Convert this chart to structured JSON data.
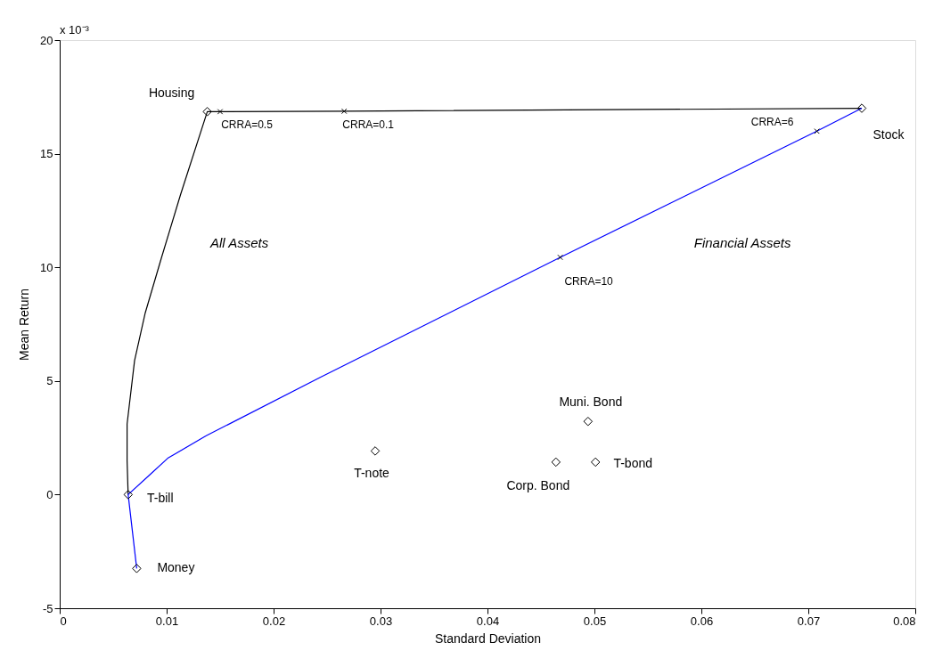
{
  "chart_data": {
    "type": "scatter",
    "xlabel": "Standard Deviation",
    "ylabel": "Mean Return",
    "xlim": [
      0,
      0.08
    ],
    "xticks": [
      0,
      0.01,
      0.02,
      0.03,
      0.04,
      0.05,
      0.06,
      0.07,
      0.08
    ],
    "ylim": [
      -5,
      20
    ],
    "yticks": [
      -5,
      0,
      5,
      10,
      15,
      20
    ],
    "grid": false,
    "legend": false,
    "series": [
      {
        "type": "line",
        "color": "#000000",
        "marker": "none",
        "line_style": "solid",
        "x": [
          0.0064,
          0.0063,
          0.0063,
          0.007,
          0.008,
          0.0095,
          0.0113,
          0.0138,
          0.015,
          0.0266,
          0.075
        ],
        "values": [
          0,
          1.5,
          3.1,
          5.9,
          8.0,
          10.4,
          13.2,
          16.85,
          16.85,
          16.87,
          17.0
        ]
      },
      {
        "type": "line",
        "color": "#0000ff",
        "marker": "none",
        "line_style": "solid",
        "x": [
          0.0072,
          0.0064,
          0.0083,
          0.0101,
          0.0137,
          0.0244,
          0.0468,
          0.0708,
          0.075
        ],
        "values": [
          -3.25,
          0,
          0.82,
          1.6,
          2.59,
          5.17,
          10.44,
          15.99,
          17.0
        ]
      },
      {
        "type": "scatter",
        "color": "#000000",
        "marker": "diamond",
        "x": [
          0.0138,
          0.075,
          0.0064,
          0.0072,
          0.0295,
          0.0464,
          0.0501,
          0.0494
        ],
        "values": [
          16.85,
          17.0,
          0,
          -3.25,
          1.92,
          1.43,
          1.43,
          3.22
        ]
      },
      {
        "type": "scatter",
        "color": "#000000",
        "marker": "cross",
        "x": [
          0.015,
          0.0266,
          0.0708,
          0.0468
        ],
        "values": [
          16.85,
          16.87,
          15.99,
          10.44
        ]
      }
    ],
    "annotations": [
      {
        "text": "Housing",
        "x": 0.0138,
        "y": 16.85
      },
      {
        "text": "Stock",
        "x": 0.075,
        "y": 17.0
      },
      {
        "text": "T-bill",
        "x": 0.0064,
        "y": 0
      },
      {
        "text": "Money",
        "x": 0.0072,
        "y": -3.25
      },
      {
        "text": "T-note",
        "x": 0.0295,
        "y": 1.92
      },
      {
        "text": "Corp. Bond",
        "x": 0.0464,
        "y": 1.43
      },
      {
        "text": "T-bond",
        "x": 0.0501,
        "y": 1.43
      },
      {
        "text": "Muni. Bond",
        "x": 0.0494,
        "y": 3.22
      },
      {
        "text": "CRRA=0.5",
        "x": 0.015,
        "y": 16.85
      },
      {
        "text": "CRRA=0.1",
        "x": 0.0266,
        "y": 16.87
      },
      {
        "text": "CRRA=6",
        "x": 0.0708,
        "y": 15.99
      },
      {
        "text": "CRRA=10",
        "x": 0.0468,
        "y": 10.44
      },
      "All Assets",
      "Financial Assets",
      "x 10⁻³"
    ]
  }
}
